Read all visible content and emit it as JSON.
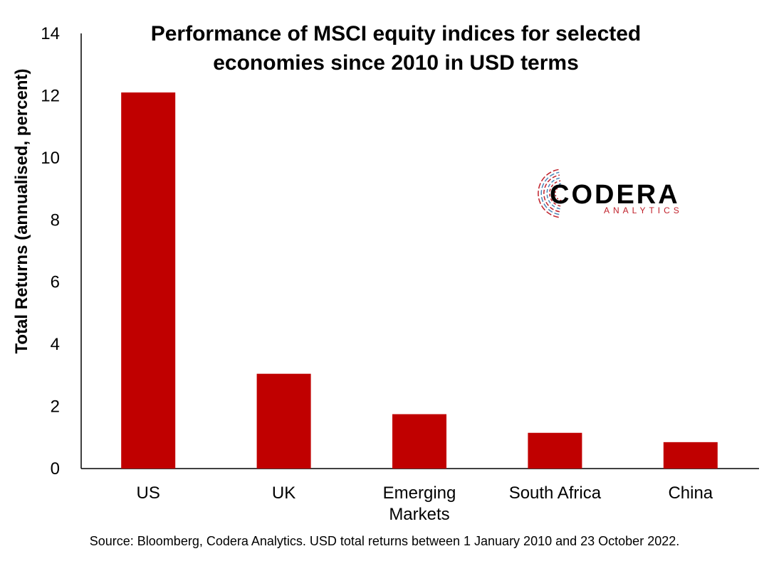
{
  "chart_data": {
    "type": "bar",
    "title_lines": [
      "Performance of MSCI equity indices for selected",
      "economies since 2010 in USD terms"
    ],
    "ylabel": "Total Returns (annualised, percent)",
    "categories": [
      [
        "US"
      ],
      [
        "UK"
      ],
      [
        "Emerging",
        "Markets"
      ],
      [
        "South Africa"
      ],
      [
        "China"
      ]
    ],
    "values": [
      12.1,
      3.05,
      1.75,
      1.15,
      0.85
    ],
    "ylim": [
      0,
      14
    ],
    "yticks": [
      0,
      2,
      4,
      6,
      8,
      10,
      12,
      14
    ],
    "bar_color": "#c00000",
    "grid": false,
    "legend": "none"
  },
  "logo": {
    "name": "CODERA",
    "sub": "ANALYTICS",
    "colors": {
      "red": "#c0202a",
      "blue": "#4a86b8",
      "text": "#000000"
    }
  },
  "source": "Source: Bloomberg, Codera Analytics. USD total returns between 1 January 2010 and 23 October 2022."
}
